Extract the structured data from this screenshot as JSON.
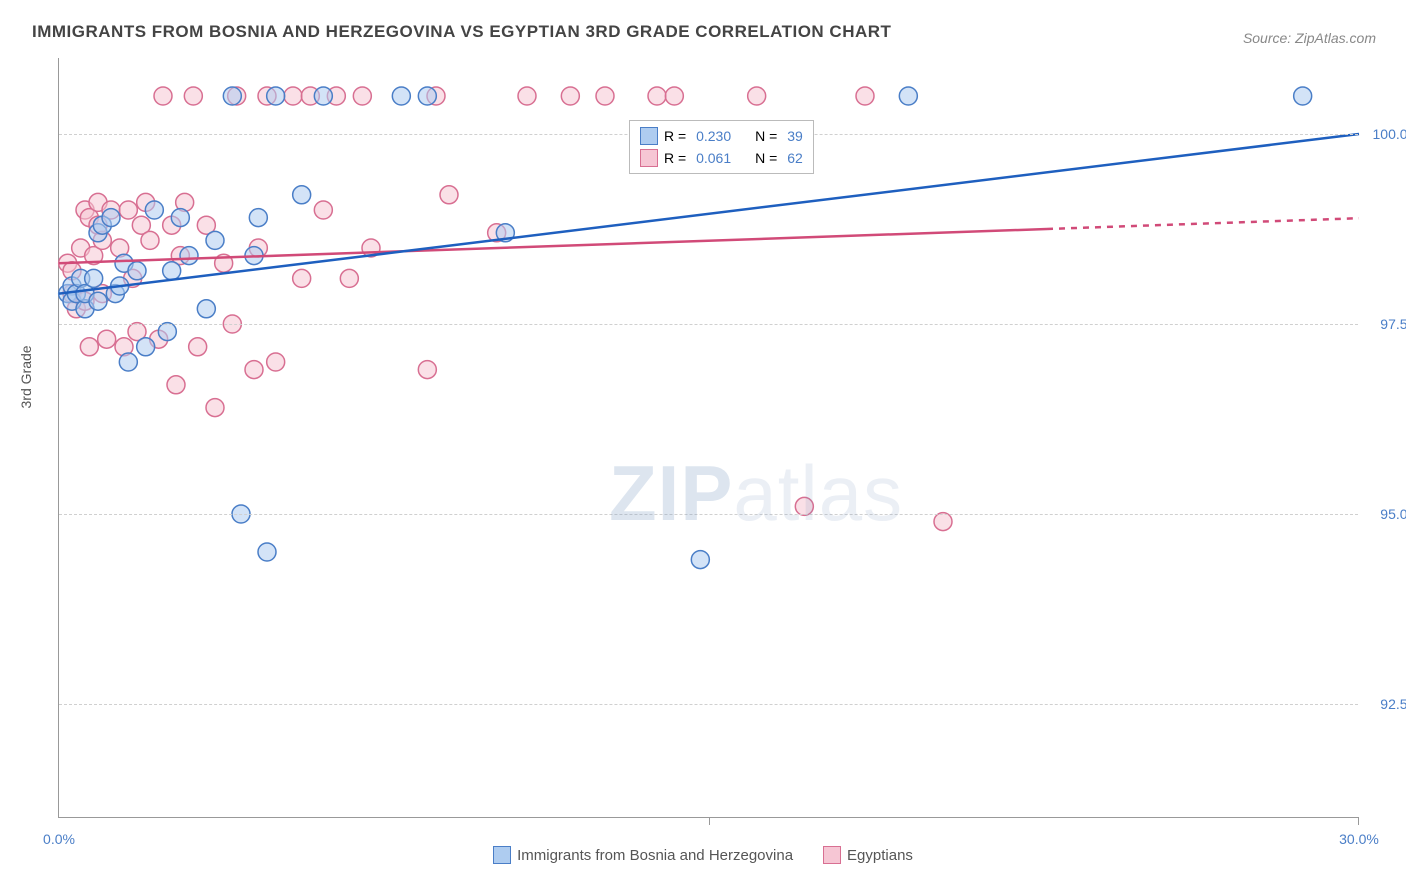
{
  "title": "IMMIGRANTS FROM BOSNIA AND HERZEGOVINA VS EGYPTIAN 3RD GRADE CORRELATION CHART",
  "source": "Source: ZipAtlas.com",
  "y_axis_title": "3rd Grade",
  "watermark_zip": "ZIP",
  "watermark_atlas": "atlas",
  "chart": {
    "type": "scatter",
    "xlim": [
      0,
      30
    ],
    "ylim": [
      91,
      101
    ],
    "x_ticks": [
      0,
      15,
      30
    ],
    "x_tick_labels": [
      "0.0%",
      "",
      "30.0%"
    ],
    "y_ticks": [
      92.5,
      95.0,
      97.5,
      100.0
    ],
    "y_tick_labels": [
      "92.5%",
      "95.0%",
      "97.5%",
      "100.0%"
    ],
    "background_color": "#ffffff",
    "grid_color": "#d0d0d0",
    "axis_color": "#999999",
    "tick_label_color": "#4a7ec7",
    "tick_fontsize": 14,
    "marker_radius": 9,
    "marker_opacity": 0.55,
    "series_a": {
      "label": "Immigrants from Bosnia and Herzegovina",
      "color_fill": "#aeccf0",
      "color_stroke": "#4a7ec7",
      "R": "0.230",
      "N": "39",
      "trend": {
        "x1": 0,
        "y1": 97.9,
        "x2": 30,
        "y2": 100.0,
        "extrapolate_from_x": 30,
        "color": "#1e5fbf",
        "width": 2.5
      },
      "points": [
        [
          0.2,
          97.9
        ],
        [
          0.3,
          98.0
        ],
        [
          0.3,
          97.8
        ],
        [
          0.4,
          97.9
        ],
        [
          0.5,
          98.1
        ],
        [
          0.6,
          97.7
        ],
        [
          0.6,
          97.9
        ],
        [
          0.8,
          98.1
        ],
        [
          0.9,
          97.8
        ],
        [
          0.9,
          98.7
        ],
        [
          1.0,
          98.8
        ],
        [
          1.2,
          98.9
        ],
        [
          1.3,
          97.9
        ],
        [
          1.4,
          98.0
        ],
        [
          1.5,
          98.3
        ],
        [
          1.6,
          97.0
        ],
        [
          1.8,
          98.2
        ],
        [
          2.0,
          97.2
        ],
        [
          2.2,
          99.0
        ],
        [
          2.5,
          97.4
        ],
        [
          2.6,
          98.2
        ],
        [
          2.8,
          98.9
        ],
        [
          3.0,
          98.4
        ],
        [
          3.4,
          97.7
        ],
        [
          3.6,
          98.6
        ],
        [
          4.0,
          100.5
        ],
        [
          4.2,
          95.0
        ],
        [
          4.5,
          98.4
        ],
        [
          4.6,
          98.9
        ],
        [
          4.8,
          94.5
        ],
        [
          5.0,
          100.5
        ],
        [
          5.6,
          99.2
        ],
        [
          6.1,
          100.5
        ],
        [
          7.9,
          100.5
        ],
        [
          8.5,
          100.5
        ],
        [
          10.3,
          98.7
        ],
        [
          14.8,
          94.4
        ],
        [
          19.6,
          100.5
        ],
        [
          28.7,
          100.5
        ]
      ]
    },
    "series_b": {
      "label": "Egyptians",
      "color_fill": "#f6c6d4",
      "color_stroke": "#d86f92",
      "R": "0.061",
      "N": "62",
      "trend": {
        "x1": 0,
        "y1": 98.3,
        "x2": 22.8,
        "y2": 98.75,
        "extrapolate_from_x": 22.8,
        "color": "#d14a78",
        "width": 2.5
      },
      "points": [
        [
          0.2,
          98.3
        ],
        [
          0.3,
          97.9
        ],
        [
          0.3,
          98.2
        ],
        [
          0.4,
          97.7
        ],
        [
          0.5,
          98.5
        ],
        [
          0.6,
          99.0
        ],
        [
          0.6,
          97.8
        ],
        [
          0.7,
          98.9
        ],
        [
          0.7,
          97.2
        ],
        [
          0.8,
          98.4
        ],
        [
          0.9,
          98.8
        ],
        [
          0.9,
          99.1
        ],
        [
          1.0,
          97.9
        ],
        [
          1.0,
          98.6
        ],
        [
          1.1,
          97.3
        ],
        [
          1.2,
          99.0
        ],
        [
          1.4,
          98.5
        ],
        [
          1.5,
          97.2
        ],
        [
          1.6,
          99.0
        ],
        [
          1.7,
          98.1
        ],
        [
          1.8,
          97.4
        ],
        [
          1.9,
          98.8
        ],
        [
          2.0,
          99.1
        ],
        [
          2.1,
          98.6
        ],
        [
          2.3,
          97.3
        ],
        [
          2.4,
          100.5
        ],
        [
          2.6,
          98.8
        ],
        [
          2.7,
          96.7
        ],
        [
          2.8,
          98.4
        ],
        [
          2.9,
          99.1
        ],
        [
          3.1,
          100.5
        ],
        [
          3.2,
          97.2
        ],
        [
          3.4,
          98.8
        ],
        [
          3.6,
          96.4
        ],
        [
          3.8,
          98.3
        ],
        [
          4.0,
          97.5
        ],
        [
          4.1,
          100.5
        ],
        [
          4.5,
          96.9
        ],
        [
          4.6,
          98.5
        ],
        [
          4.8,
          100.5
        ],
        [
          5.0,
          97.0
        ],
        [
          5.4,
          100.5
        ],
        [
          5.6,
          98.1
        ],
        [
          5.8,
          100.5
        ],
        [
          6.1,
          99.0
        ],
        [
          6.4,
          100.5
        ],
        [
          6.7,
          98.1
        ],
        [
          7.0,
          100.5
        ],
        [
          7.2,
          98.5
        ],
        [
          8.5,
          96.9
        ],
        [
          8.7,
          100.5
        ],
        [
          9.0,
          99.2
        ],
        [
          10.1,
          98.7
        ],
        [
          10.8,
          100.5
        ],
        [
          11.8,
          100.5
        ],
        [
          12.6,
          100.5
        ],
        [
          13.8,
          100.5
        ],
        [
          14.2,
          100.5
        ],
        [
          16.1,
          100.5
        ],
        [
          17.2,
          95.1
        ],
        [
          18.6,
          100.5
        ],
        [
          20.4,
          94.9
        ]
      ]
    }
  },
  "legend_top": {
    "r_prefix": "R = ",
    "n_prefix": "N = ",
    "value_color": "#4a7ec7",
    "label_color": "#555555"
  },
  "legend_bottom": {
    "text_color": "#555555"
  }
}
